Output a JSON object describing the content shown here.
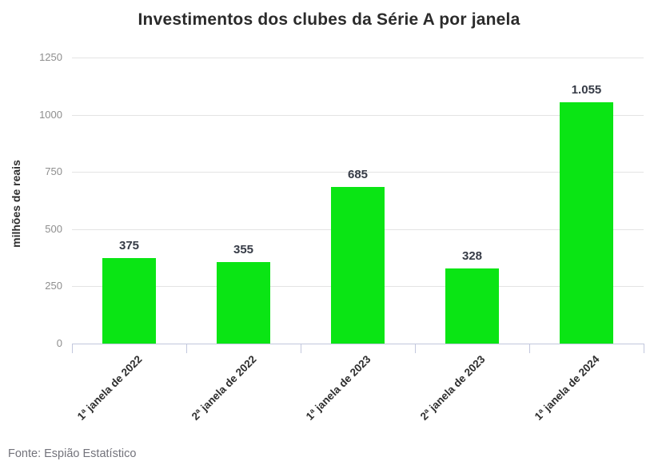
{
  "chart_data": {
    "type": "bar",
    "title": "Investimentos dos clubes da Série A por janela",
    "categories": [
      "1ª janela de 2022",
      "2ª janela de 2022",
      "1ª janela de 2023",
      "2ª janela de 2023",
      "1ª janela de 2024"
    ],
    "values": [
      375,
      355,
      685,
      328,
      1055
    ],
    "value_labels": [
      "375",
      "355",
      "685",
      "328",
      "1.055"
    ],
    "xlabel": "",
    "ylabel": "milhões de reais",
    "ylim": [
      0,
      1250
    ],
    "yticks": [
      0,
      250,
      500,
      750,
      1000,
      1250
    ],
    "grid": "horizontal",
    "legend": "none",
    "bar_color": "#0ae514",
    "source": "Fonte: Espião Estatístico"
  }
}
